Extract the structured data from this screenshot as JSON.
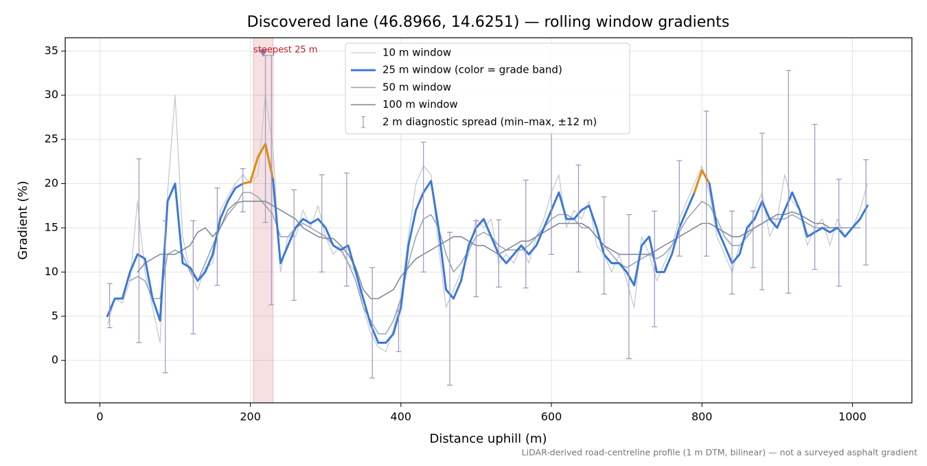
{
  "chart_data": {
    "type": "line",
    "title": "Discovered lane (46.8966, 14.6251) — rolling window gradients",
    "xlabel": "Distance uphill (m)",
    "ylabel": "Gradient (%)",
    "footnote": "LiDAR-derived road-centreline profile (1 m DTM, bilinear) — not a surveyed asphalt gradient",
    "xlim": [
      -46,
      1079
    ],
    "ylim": [
      -4.8,
      36.5
    ],
    "xticks": [
      0,
      200,
      400,
      600,
      800,
      1000
    ],
    "yticks": [
      0,
      5,
      10,
      15,
      20,
      25,
      30,
      35
    ],
    "grid": true,
    "legend": "upper center",
    "x": [
      10,
      20,
      30,
      40,
      50,
      60,
      70,
      80,
      90,
      100,
      110,
      120,
      130,
      140,
      150,
      160,
      170,
      180,
      190,
      200,
      210,
      220,
      230,
      240,
      250,
      260,
      270,
      280,
      290,
      300,
      310,
      320,
      330,
      340,
      350,
      360,
      370,
      380,
      390,
      400,
      410,
      420,
      430,
      440,
      450,
      460,
      470,
      480,
      490,
      500,
      510,
      520,
      530,
      540,
      550,
      560,
      570,
      580,
      590,
      600,
      610,
      620,
      630,
      640,
      650,
      660,
      670,
      680,
      690,
      700,
      710,
      720,
      730,
      740,
      750,
      760,
      770,
      780,
      790,
      800,
      810,
      820,
      830,
      840,
      850,
      860,
      870,
      880,
      890,
      900,
      910,
      920,
      930,
      940,
      950,
      960,
      970,
      980,
      990,
      1000,
      1010,
      1020
    ],
    "series": [
      {
        "name": "10 m window",
        "color": "#c3c9d4",
        "linewidth": 1.3,
        "values": [
          4,
          7,
          6.5,
          9,
          18,
          10,
          6,
          2,
          19,
          30,
          14,
          10,
          8,
          10.5,
          11,
          17,
          18.5,
          20,
          21,
          20,
          21,
          30,
          24,
          10,
          14,
          14,
          17,
          15,
          17.5,
          14,
          12,
          13,
          11,
          10,
          6,
          3,
          1.5,
          1,
          3.5,
          7,
          14,
          20,
          22,
          21,
          13,
          6,
          8,
          10,
          12,
          16,
          15,
          16,
          11,
          12,
          11,
          13,
          11,
          14,
          16,
          19,
          21,
          15,
          17,
          16,
          18,
          13,
          12,
          10,
          12,
          9,
          6,
          14,
          12,
          9,
          11,
          13,
          16,
          18,
          20,
          22,
          19,
          14,
          12,
          10,
          13,
          14,
          17,
          19,
          14,
          16,
          21,
          18,
          17,
          13,
          15,
          16,
          13,
          16,
          14,
          15,
          17,
          20
        ]
      },
      {
        "name": "25 m window (color = grade band)",
        "color": "#3a78d8",
        "linewidth": 3,
        "values": [
          5,
          7,
          7,
          10,
          12,
          11.5,
          7,
          4.5,
          18,
          20,
          11,
          10.5,
          9,
          10,
          12,
          16,
          18,
          19.5,
          20,
          20.2,
          23,
          24.5,
          20.5,
          11,
          13,
          15,
          16,
          15.5,
          16,
          15,
          13,
          12.5,
          13,
          10,
          7,
          4,
          2,
          2,
          3,
          6,
          13,
          17,
          19,
          20.3,
          15,
          8,
          7,
          9,
          13,
          15,
          16,
          14,
          12,
          11,
          12,
          13,
          12,
          13,
          15,
          17,
          19,
          16,
          16,
          17,
          17.5,
          15,
          12,
          11,
          11,
          10,
          8.5,
          13,
          14,
          10,
          10,
          12,
          15,
          17,
          19,
          21.5,
          20,
          15,
          13,
          11,
          12,
          15,
          16,
          18,
          16,
          15,
          17,
          19,
          17,
          14,
          14.5,
          15,
          14.5,
          15,
          14,
          15,
          16,
          17.5
        ]
      },
      {
        "name": "50 m window",
        "color": "#9aa5b4",
        "linewidth": 1.6,
        "values": [
          null,
          null,
          null,
          9,
          9.5,
          9,
          7,
          7,
          12,
          12.5,
          12,
          10,
          9,
          11,
          13,
          15,
          16.5,
          17.5,
          19,
          19,
          18.5,
          17.5,
          16.5,
          14,
          14,
          15,
          15.5,
          15,
          14.5,
          14,
          13,
          12.5,
          11,
          9,
          6,
          4.5,
          3,
          3,
          4.5,
          7,
          11,
          14,
          16,
          16.5,
          15,
          12,
          10,
          11,
          12.5,
          14,
          14.5,
          14,
          13,
          12.5,
          12.5,
          12.5,
          13,
          14,
          15,
          16,
          16.5,
          16.5,
          16,
          15,
          15,
          14,
          13,
          12,
          11,
          10.5,
          11,
          11.5,
          12,
          11.5,
          12,
          13,
          14.5,
          16,
          17,
          18,
          17.5,
          16,
          14,
          13,
          13,
          14,
          15,
          15.5,
          16,
          16,
          16,
          16.5,
          16,
          15.5,
          15,
          15,
          15,
          15,
          15,
          15,
          15,
          null
        ]
      },
      {
        "name": "100 m window",
        "color": "#7f8898",
        "linewidth": 1.6,
        "values": [
          null,
          null,
          null,
          null,
          10,
          11,
          11.5,
          12,
          12,
          12,
          12.5,
          13,
          14.5,
          15,
          14,
          15,
          17,
          17.8,
          18,
          18,
          18,
          18,
          17.5,
          17,
          16.5,
          16,
          15,
          14.5,
          14,
          13.8,
          13.8,
          13,
          12,
          10.5,
          8,
          7,
          7,
          7.5,
          8,
          9.5,
          10.5,
          11.5,
          12,
          12.5,
          13,
          13.5,
          14,
          14,
          13.5,
          13,
          13,
          12.5,
          12,
          12.5,
          13,
          13.5,
          13.5,
          14,
          14.5,
          15,
          15.5,
          15.5,
          15.5,
          15.5,
          15,
          14,
          13,
          12.5,
          12,
          12,
          12,
          12,
          12,
          12.5,
          13,
          13.5,
          14,
          14.5,
          15,
          15.5,
          15.5,
          15,
          14.5,
          14,
          14,
          14.5,
          15,
          15.5,
          16,
          16.5,
          16.5,
          16.8,
          16.5,
          16,
          15.5,
          15.5,
          15,
          15,
          null,
          null,
          null,
          null
        ]
      }
    ],
    "grade_band": {
      "threshold": 20,
      "color": "#e08a00"
    },
    "errorbars": {
      "name": "2 m diagnostic spread (min–max, ±12 m)",
      "color": "#9b94bd",
      "x": [
        13,
        52,
        87,
        124,
        156,
        190,
        220,
        228,
        258,
        295,
        328,
        362,
        397,
        430,
        465,
        500,
        530,
        566,
        600,
        636,
        670,
        703,
        737,
        770,
        806,
        840,
        868,
        880,
        915,
        950,
        982,
        1018
      ],
      "lower": [
        3.7,
        2,
        -1.4,
        3,
        8.5,
        16.8,
        15.6,
        6.3,
        6.8,
        10,
        8.4,
        -2,
        1,
        10,
        -2.8,
        7.2,
        8.3,
        8.2,
        12,
        10,
        7.5,
        0.2,
        3.8,
        11.8,
        11.8,
        7.5,
        10.5,
        8,
        7.6,
        10.3,
        8.4,
        10.8
      ],
      "upper": [
        8.7,
        22.8,
        15.8,
        15.8,
        19.5,
        21.7,
        34.5,
        34.5,
        19.3,
        21,
        21.2,
        10.5,
        5.6,
        24.7,
        14.5,
        15.8,
        15.9,
        20.4,
        25.8,
        22.1,
        18.5,
        16.5,
        16.9,
        22.6,
        28.2,
        16.9,
        16.9,
        25.7,
        32.8,
        26.7,
        20.5,
        22.7
      ]
    },
    "highlight": {
      "label": "steepest 25 m",
      "x_range": [
        204,
        230
      ],
      "marker_x": 217,
      "marker_y": 34.8,
      "color": "#c0202e"
    }
  }
}
